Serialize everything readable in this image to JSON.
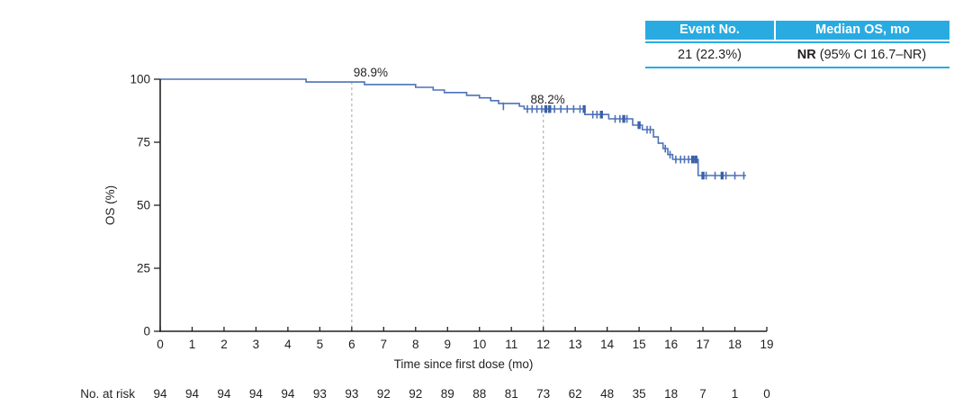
{
  "colors": {
    "accent_cyan": "#29abe2",
    "curve_blue": "#4d72b8",
    "censor_heavy_blue": "#3a60a8",
    "axis_black": "#231f20",
    "dashed_gray": "#b3b3b3",
    "header_text_white": "#ffffff"
  },
  "summary_table": {
    "headers": [
      "Event No.",
      "Median OS, mo"
    ],
    "row": {
      "event_no": "21 (22.3%)",
      "median_prefix": "NR",
      "median_rest": " (95% CI 16.7–NR)"
    }
  },
  "chart_data": {
    "type": "line",
    "subtype": "kaplan-meier-step",
    "title": "",
    "xlabel": "Time since first dose (mo)",
    "ylabel": "OS (%)",
    "xlim": [
      0,
      19
    ],
    "ylim": [
      0,
      100
    ],
    "xticks": [
      0,
      1,
      2,
      3,
      4,
      5,
      6,
      7,
      8,
      9,
      10,
      11,
      12,
      13,
      14,
      15,
      16,
      17,
      18,
      19
    ],
    "yticks": [
      0,
      25,
      50,
      75,
      100
    ],
    "grid": false,
    "legend": "none",
    "km_curve": [
      [
        0,
        100
      ],
      [
        4.57,
        100
      ],
      [
        4.57,
        98.9
      ],
      [
        6.4,
        98.9
      ],
      [
        6.4,
        97.9
      ],
      [
        8.0,
        97.9
      ],
      [
        8.0,
        96.8
      ],
      [
        8.55,
        96.8
      ],
      [
        8.55,
        95.7
      ],
      [
        8.9,
        95.7
      ],
      [
        8.9,
        94.7
      ],
      [
        9.6,
        94.7
      ],
      [
        9.6,
        93.6
      ],
      [
        10.0,
        93.6
      ],
      [
        10.0,
        92.6
      ],
      [
        10.35,
        92.6
      ],
      [
        10.35,
        91.5
      ],
      [
        10.6,
        91.5
      ],
      [
        10.6,
        90.4
      ],
      [
        11.25,
        90.4
      ],
      [
        11.25,
        89.3
      ],
      [
        11.4,
        89.3
      ],
      [
        11.4,
        88.2
      ],
      [
        13.3,
        88.2
      ],
      [
        13.3,
        86.0
      ],
      [
        14.05,
        86.0
      ],
      [
        14.05,
        84.3
      ],
      [
        14.8,
        84.3
      ],
      [
        14.8,
        81.8
      ],
      [
        15.1,
        81.8
      ],
      [
        15.1,
        80.0
      ],
      [
        15.45,
        80.0
      ],
      [
        15.45,
        77.1
      ],
      [
        15.6,
        77.1
      ],
      [
        15.6,
        74.6
      ],
      [
        15.75,
        74.6
      ],
      [
        15.75,
        72.5
      ],
      [
        15.9,
        72.5
      ],
      [
        15.9,
        70.1
      ],
      [
        16.05,
        70.1
      ],
      [
        16.05,
        68.2
      ],
      [
        16.85,
        68.2
      ],
      [
        16.85,
        61.8
      ],
      [
        18.35,
        61.8
      ]
    ],
    "censor_marks": [
      [
        10.75,
        89.3,
        0
      ],
      [
        11.5,
        88.2,
        0
      ],
      [
        11.65,
        88.2,
        0
      ],
      [
        11.8,
        88.2,
        0
      ],
      [
        11.95,
        88.2,
        0
      ],
      [
        12.08,
        88.2,
        1
      ],
      [
        12.2,
        88.2,
        1
      ],
      [
        12.35,
        88.2,
        0
      ],
      [
        12.55,
        88.2,
        0
      ],
      [
        12.75,
        88.2,
        0
      ],
      [
        12.95,
        88.2,
        0
      ],
      [
        13.15,
        88.2,
        0
      ],
      [
        13.28,
        88.2,
        1
      ],
      [
        13.55,
        86.0,
        0
      ],
      [
        13.68,
        86.0,
        0
      ],
      [
        13.82,
        86.0,
        1
      ],
      [
        14.25,
        84.3,
        0
      ],
      [
        14.4,
        84.3,
        0
      ],
      [
        14.52,
        84.3,
        1
      ],
      [
        14.62,
        84.3,
        0
      ],
      [
        15.0,
        81.8,
        1
      ],
      [
        15.25,
        80.0,
        0
      ],
      [
        15.35,
        80.0,
        0
      ],
      [
        15.82,
        72.5,
        0
      ],
      [
        15.97,
        70.1,
        0
      ],
      [
        16.15,
        68.2,
        0
      ],
      [
        16.3,
        68.2,
        0
      ],
      [
        16.42,
        68.2,
        0
      ],
      [
        16.55,
        68.2,
        0
      ],
      [
        16.68,
        68.2,
        1
      ],
      [
        16.78,
        68.2,
        1
      ],
      [
        17.0,
        61.8,
        1
      ],
      [
        17.1,
        61.8,
        0
      ],
      [
        17.38,
        61.8,
        0
      ],
      [
        17.6,
        61.8,
        1
      ],
      [
        17.72,
        61.8,
        0
      ],
      [
        18.0,
        61.8,
        0
      ],
      [
        18.28,
        61.8,
        0
      ]
    ],
    "reference_lines": [
      {
        "x": 6,
        "top_value": 98.9,
        "label": "98.9%"
      },
      {
        "x": 12,
        "top_value": 88.2,
        "label": "88.2%"
      }
    ],
    "risk_table": {
      "label": "No. at risk",
      "times": [
        0,
        1,
        2,
        3,
        4,
        5,
        6,
        7,
        8,
        9,
        10,
        11,
        12,
        13,
        14,
        15,
        16,
        17,
        18,
        19
      ],
      "values": [
        94,
        94,
        94,
        94,
        94,
        93,
        93,
        92,
        92,
        89,
        88,
        81,
        73,
        62,
        48,
        35,
        18,
        7,
        1,
        0
      ]
    }
  }
}
